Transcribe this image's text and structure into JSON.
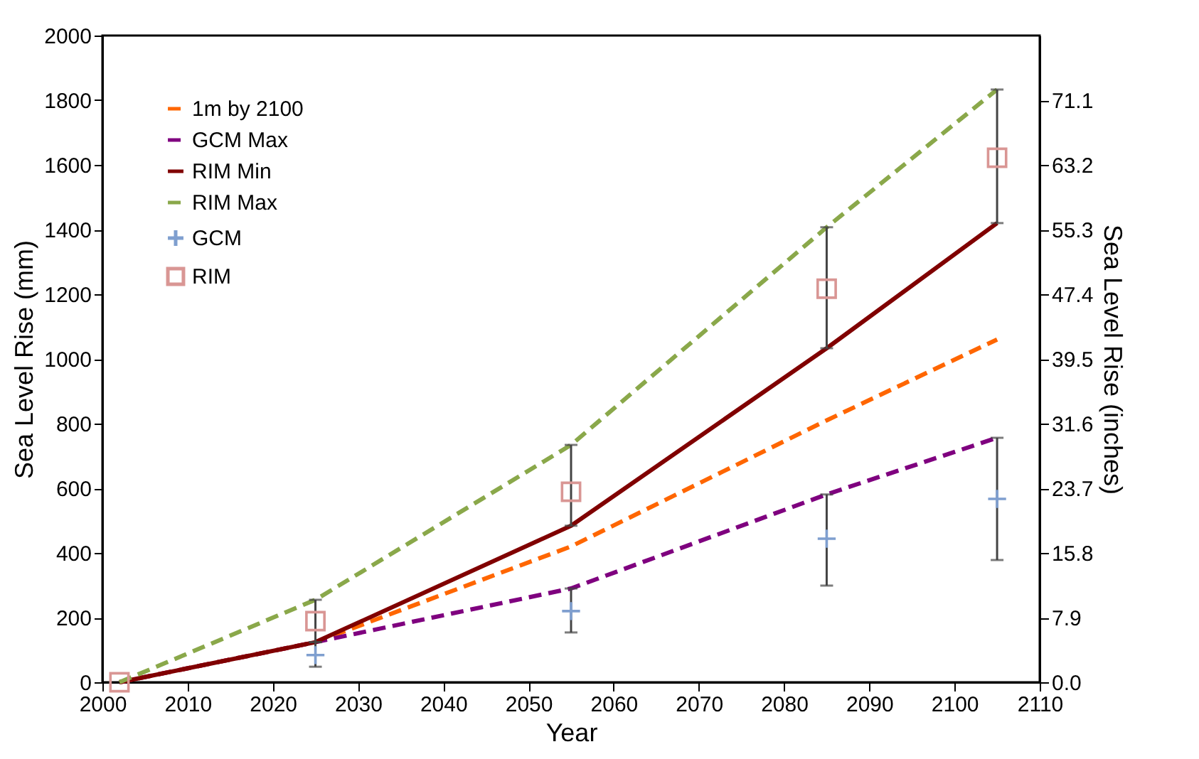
{
  "chart_data": {
    "type": "line",
    "xlabel": "Year",
    "ylabel": "Sea Level Rise (mm)",
    "y2label": "Sea Level Rise (inches)",
    "xlim": [
      2000,
      2110
    ],
    "xticks": [
      2000,
      2010,
      2020,
      2030,
      2040,
      2050,
      2060,
      2070,
      2080,
      2090,
      2100,
      2110
    ],
    "ylim": [
      0,
      2000
    ],
    "yticks": [
      0,
      200,
      400,
      600,
      800,
      1000,
      1200,
      1400,
      1600,
      1800,
      2000
    ],
    "y2lim": [
      0,
      79
    ],
    "y2ticks": [
      {
        "value": 0,
        "label": "0.0"
      },
      7.9,
      15.8,
      23.7,
      31.6,
      39.5,
      47.4,
      55.3,
      63.2,
      71.1
    ],
    "grid": false,
    "legend": "top left",
    "series": [
      {
        "name": "1m by 2100",
        "color": "#ff6600",
        "line_style": "dashed",
        "x": [
          2002,
          2025,
          2055,
          2085,
          2105
        ],
        "values": [
          0,
          124,
          420,
          810,
          1060
        ]
      },
      {
        "name": "GCM Max",
        "color": "#7f007f",
        "line_style": "dashed",
        "x": [
          2002,
          2025,
          2055,
          2085,
          2105
        ],
        "values": [
          0,
          124,
          290,
          581,
          756
        ]
      },
      {
        "name": "RIM Min",
        "color": "#800000",
        "line_style": "solid",
        "x": [
          2002,
          2025,
          2055,
          2085,
          2105
        ],
        "values": [
          0,
          124,
          484,
          1033,
          1420
        ]
      },
      {
        "name": "RIM Max",
        "color": "#8aa84a",
        "line_style": "dashed",
        "x": [
          2002,
          2025,
          2055,
          2085,
          2105
        ],
        "values": [
          0,
          255,
          734,
          1407,
          1833
        ]
      },
      {
        "name": "GCM",
        "type": "scatter",
        "marker": "cross",
        "color": "#7f9fcf",
        "x": [
          2025,
          2055,
          2085,
          2105
        ],
        "values": [
          84,
          220,
          444,
          567
        ],
        "errors": [
          [
            48,
            124
          ],
          [
            154,
            290
          ],
          [
            299,
            581
          ],
          [
            378,
            756
          ]
        ]
      },
      {
        "name": "RIM",
        "type": "scatter",
        "marker": "square",
        "color": "#d99694",
        "x": [
          2002,
          2025,
          2055,
          2085,
          2105
        ],
        "values": [
          0,
          189,
          589,
          1217,
          1622
        ],
        "errors": [
          null,
          [
            124,
            255
          ],
          [
            484,
            734
          ],
          [
            1033,
            1407
          ],
          [
            1420,
            1833
          ]
        ]
      }
    ]
  }
}
